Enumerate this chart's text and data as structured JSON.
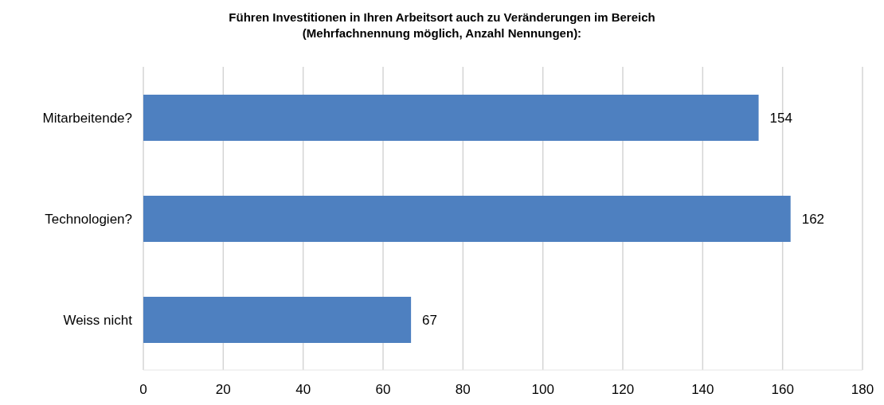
{
  "chart_data": {
    "type": "bar",
    "orientation": "horizontal",
    "title": "Führen Investitionen in Ihren Arbeitsort auch zu Veränderungen im Bereich\n(Mehrfachnennung möglich, Anzahl Nennungen):",
    "categories": [
      "Mitarbeitende?",
      "Technologien?",
      "Weiss nicht"
    ],
    "values": [
      154,
      162,
      67
    ],
    "color": "#4e80c0",
    "xlim": [
      0,
      180
    ],
    "xticks": [
      0,
      20,
      40,
      60,
      80,
      100,
      120,
      140,
      160,
      180
    ],
    "grid": "x",
    "data_labels": true
  }
}
